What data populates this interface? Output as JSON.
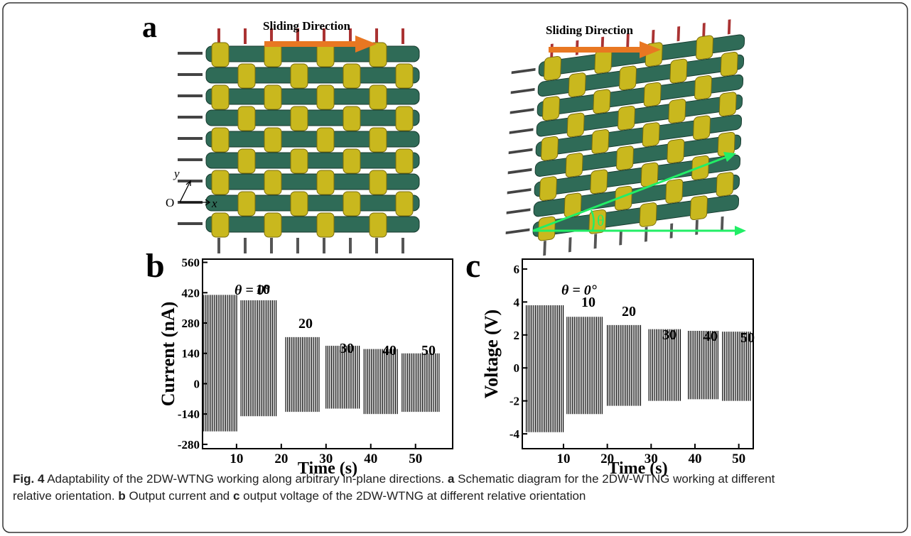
{
  "panel_a": {
    "label": "a",
    "sliding_left": "Sliding Direction",
    "sliding_right": "Sliding Direction",
    "axis_y": "y",
    "axis_origin": "O",
    "axis_x": "x",
    "angle": "θ"
  },
  "chart_data": [
    {
      "type": "burst",
      "panel_label": "b",
      "ylabel": "Current (nA)",
      "xlabel": "Time (s)",
      "xlim": [
        2.4,
        58.3
      ],
      "ylim": [
        -300,
        575
      ],
      "xticks": [
        10,
        20,
        30,
        40,
        50
      ],
      "yticks": [
        -280,
        -140,
        0,
        140,
        280,
        420,
        560
      ],
      "annotations": [
        "θ = 0°",
        "10",
        "20",
        "30",
        "40",
        "50"
      ],
      "segments": [
        {
          "start": 2.6,
          "end": 10.3,
          "max": 410,
          "min": -220
        },
        {
          "start": 11,
          "end": 19,
          "max": 385,
          "min": -150
        },
        {
          "start": 21,
          "end": 28.5,
          "max": 215,
          "min": -130
        },
        {
          "start": 30,
          "end": 37.5,
          "max": 175,
          "min": -115
        },
        {
          "start": 38.5,
          "end": 46,
          "max": 160,
          "min": -140
        },
        {
          "start": 47,
          "end": 55.5,
          "max": 140,
          "min": -130
        }
      ]
    },
    {
      "type": "burst",
      "panel_label": "c",
      "ylabel": "Voltage (V)",
      "xlabel": "Time (s)",
      "xlim": [
        0.6,
        53.3
      ],
      "ylim": [
        -4.9,
        6.6
      ],
      "xticks": [
        10,
        20,
        30,
        40,
        50
      ],
      "yticks": [
        -4,
        -2,
        0,
        2,
        4,
        6
      ],
      "annotations": [
        "θ = 0°",
        "10",
        "20",
        "30",
        "40",
        "50"
      ],
      "segments": [
        {
          "start": 1.5,
          "end": 10,
          "max": 3.8,
          "min": -3.9
        },
        {
          "start": 10.8,
          "end": 19,
          "max": 3.1,
          "min": -2.8
        },
        {
          "start": 20,
          "end": 28,
          "max": 2.6,
          "min": -2.3
        },
        {
          "start": 29.5,
          "end": 37,
          "max": 2.35,
          "min": -2.0
        },
        {
          "start": 38.5,
          "end": 45.5,
          "max": 2.25,
          "min": -1.9
        },
        {
          "start": 46.3,
          "end": 53,
          "max": 2.2,
          "min": -2.0
        }
      ]
    }
  ],
  "caption": {
    "fig": "Fig. 4",
    "text1": " Adaptability of the 2DW-WTNG working along arbitrary in-plane directions. ",
    "a": "a",
    "text2": " Schematic diagram for the 2DW-WTNG working at different",
    "text3": "relative orientation. ",
    "b": "b",
    "text4": " Output current and ",
    "c": "c",
    "text5": " output voltage of the 2DW-WTNG at different relative orientation"
  }
}
